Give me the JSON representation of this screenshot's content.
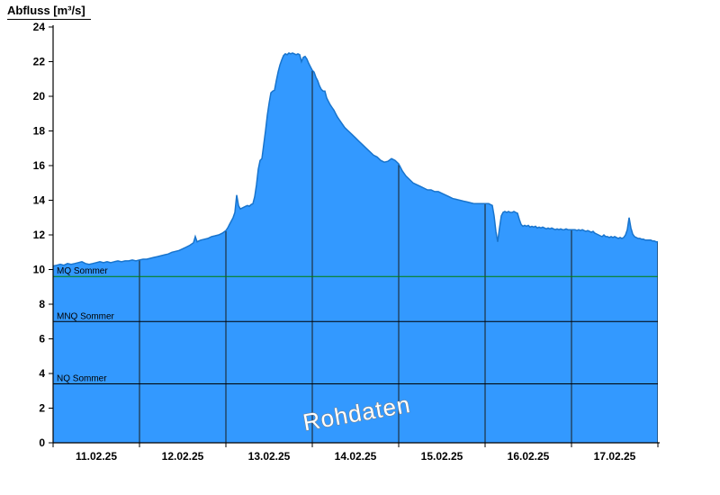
{
  "title": "Abfluss [m³/s]",
  "watermark": "Rohdaten",
  "chart_data": {
    "type": "area",
    "title": "Abfluss [m³/s]",
    "xlabel": "",
    "ylabel": "Abfluss [m³/s]",
    "x_unit": "hours since 11.02.25 00:00",
    "xlim": [
      0,
      168
    ],
    "ylim": [
      0,
      24
    ],
    "y_ticks": [
      0,
      2,
      4,
      6,
      8,
      10,
      12,
      14,
      16,
      18,
      20,
      22,
      24
    ],
    "x_tick_labels": [
      "11.02.25",
      "12.02.25",
      "13.02.25",
      "14.02.25",
      "15.02.25",
      "16.02.25",
      "17.02.25"
    ],
    "x_tick_positions_hours": [
      12,
      36,
      60,
      84,
      108,
      132,
      156
    ],
    "x_boundaries_hours": [
      0,
      24,
      48,
      72,
      96,
      120,
      144,
      168
    ],
    "grid": "vertical lines at day boundaries, clipped to filled area",
    "legend": "none",
    "colors": {
      "area_fill": "#3399FF",
      "area_stroke": "#1874CD",
      "grid_line": "#1a1a1a",
      "axis": "#000000",
      "watermark_fill": "#ffffff",
      "watermark_stroke": "#808080"
    },
    "reference_lines": [
      {
        "label": "MQ Sommer",
        "value": 9.6,
        "color": "#008000"
      },
      {
        "label": "MNQ Sommer",
        "value": 7.0,
        "color": "#000000"
      },
      {
        "label": "NQ Sommer",
        "value": 3.4,
        "color": "#000000"
      }
    ],
    "series": [
      {
        "name": "Abfluss Rohdaten",
        "points": [
          [
            0,
            10.2
          ],
          [
            1,
            10.25
          ],
          [
            2,
            10.3
          ],
          [
            3,
            10.25
          ],
          [
            4,
            10.35
          ],
          [
            5,
            10.3
          ],
          [
            6,
            10.35
          ],
          [
            7,
            10.4
          ],
          [
            8,
            10.45
          ],
          [
            9,
            10.35
          ],
          [
            10,
            10.3
          ],
          [
            11,
            10.35
          ],
          [
            12,
            10.4
          ],
          [
            13,
            10.45
          ],
          [
            14,
            10.4
          ],
          [
            15,
            10.45
          ],
          [
            16,
            10.4
          ],
          [
            17,
            10.45
          ],
          [
            18,
            10.5
          ],
          [
            19,
            10.45
          ],
          [
            20,
            10.5
          ],
          [
            21,
            10.5
          ],
          [
            22,
            10.55
          ],
          [
            23,
            10.5
          ],
          [
            24,
            10.55
          ],
          [
            25,
            10.6
          ],
          [
            26,
            10.6
          ],
          [
            27,
            10.65
          ],
          [
            28,
            10.7
          ],
          [
            29,
            10.75
          ],
          [
            30,
            10.8
          ],
          [
            31,
            10.85
          ],
          [
            32,
            10.9
          ],
          [
            33,
            11.0
          ],
          [
            34,
            11.05
          ],
          [
            35,
            11.1
          ],
          [
            36,
            11.2
          ],
          [
            37,
            11.3
          ],
          [
            38,
            11.4
          ],
          [
            39,
            11.55
          ],
          [
            39.5,
            11.9
          ],
          [
            40,
            11.6
          ],
          [
            40.5,
            11.65
          ],
          [
            41,
            11.7
          ],
          [
            42,
            11.75
          ],
          [
            43,
            11.8
          ],
          [
            44,
            11.9
          ],
          [
            45,
            11.95
          ],
          [
            46,
            12.0
          ],
          [
            47,
            12.1
          ],
          [
            48,
            12.25
          ],
          [
            48.5,
            12.4
          ],
          [
            49,
            12.6
          ],
          [
            49.5,
            12.8
          ],
          [
            50,
            13.0
          ],
          [
            50.5,
            13.3
          ],
          [
            51,
            14.3
          ],
          [
            51.5,
            13.7
          ],
          [
            52,
            13.5
          ],
          [
            52.5,
            13.55
          ],
          [
            53,
            13.6
          ],
          [
            53.5,
            13.65
          ],
          [
            54,
            13.7
          ],
          [
            54.5,
            13.65
          ],
          [
            55,
            13.75
          ],
          [
            55.5,
            13.8
          ],
          [
            56,
            14.2
          ],
          [
            56.5,
            14.9
          ],
          [
            57,
            15.8
          ],
          [
            57.5,
            16.3
          ],
          [
            58,
            16.4
          ],
          [
            58.5,
            17.2
          ],
          [
            59,
            18.0
          ],
          [
            59.5,
            18.9
          ],
          [
            60,
            19.6
          ],
          [
            60.5,
            20.2
          ],
          [
            61,
            20.3
          ],
          [
            61.5,
            20.35
          ],
          [
            62,
            20.9
          ],
          [
            62.5,
            21.4
          ],
          [
            63,
            21.8
          ],
          [
            63.5,
            22.1
          ],
          [
            64,
            22.35
          ],
          [
            64.5,
            22.45
          ],
          [
            65,
            22.4
          ],
          [
            65.5,
            22.5
          ],
          [
            66,
            22.45
          ],
          [
            66.5,
            22.5
          ],
          [
            67,
            22.45
          ],
          [
            67.5,
            22.4
          ],
          [
            68,
            22.45
          ],
          [
            68.5,
            22.4
          ],
          [
            69,
            22.0
          ],
          [
            69.5,
            22.25
          ],
          [
            70,
            22.3
          ],
          [
            70.5,
            22.15
          ],
          [
            71,
            21.9
          ],
          [
            71.5,
            21.7
          ],
          [
            72,
            21.5
          ],
          [
            72.5,
            21.4
          ],
          [
            73,
            21.1
          ],
          [
            73.5,
            20.9
          ],
          [
            74,
            20.6
          ],
          [
            74.5,
            20.4
          ],
          [
            75,
            20.3
          ],
          [
            75.5,
            20.3
          ],
          [
            76,
            19.9
          ],
          [
            76.5,
            19.7
          ],
          [
            77,
            19.5
          ],
          [
            77.5,
            19.35
          ],
          [
            78,
            19.2
          ],
          [
            78.5,
            19.0
          ],
          [
            79,
            18.8
          ],
          [
            79.5,
            18.65
          ],
          [
            80,
            18.5
          ],
          [
            80.5,
            18.35
          ],
          [
            81,
            18.2
          ],
          [
            82,
            18.0
          ],
          [
            83,
            17.8
          ],
          [
            84,
            17.6
          ],
          [
            85,
            17.4
          ],
          [
            86,
            17.2
          ],
          [
            87,
            17.0
          ],
          [
            88,
            16.8
          ],
          [
            89,
            16.6
          ],
          [
            90,
            16.5
          ],
          [
            91,
            16.3
          ],
          [
            92,
            16.2
          ],
          [
            93,
            16.25
          ],
          [
            94,
            16.4
          ],
          [
            95,
            16.3
          ],
          [
            96,
            16.1
          ],
          [
            97,
            15.7
          ],
          [
            98,
            15.4
          ],
          [
            99,
            15.2
          ],
          [
            100,
            15.0
          ],
          [
            101,
            14.9
          ],
          [
            102,
            14.8
          ],
          [
            103,
            14.7
          ],
          [
            104,
            14.6
          ],
          [
            105,
            14.6
          ],
          [
            106,
            14.5
          ],
          [
            107,
            14.5
          ],
          [
            108,
            14.4
          ],
          [
            109,
            14.3
          ],
          [
            110,
            14.2
          ],
          [
            111,
            14.1
          ],
          [
            112,
            14.05
          ],
          [
            113,
            14.0
          ],
          [
            114,
            13.95
          ],
          [
            115,
            13.9
          ],
          [
            116,
            13.85
          ],
          [
            117,
            13.8
          ],
          [
            118,
            13.8
          ],
          [
            119,
            13.8
          ],
          [
            120,
            13.8
          ],
          [
            121,
            13.8
          ],
          [
            121.5,
            13.75
          ],
          [
            122,
            13.7
          ],
          [
            122.5,
            13.1
          ],
          [
            123,
            12.2
          ],
          [
            123.5,
            11.6
          ],
          [
            124,
            12.4
          ],
          [
            124.5,
            13.1
          ],
          [
            125,
            13.3
          ],
          [
            125.5,
            13.35
          ],
          [
            126,
            13.3
          ],
          [
            126.5,
            13.35
          ],
          [
            127,
            13.3
          ],
          [
            127.5,
            13.3
          ],
          [
            128,
            13.35
          ],
          [
            128.5,
            13.3
          ],
          [
            129,
            13.25
          ],
          [
            129.5,
            12.9
          ],
          [
            130,
            12.6
          ],
          [
            130.5,
            12.5
          ],
          [
            131,
            12.55
          ],
          [
            131.5,
            12.5
          ],
          [
            132,
            12.55
          ],
          [
            132.5,
            12.45
          ],
          [
            133,
            12.5
          ],
          [
            133.5,
            12.45
          ],
          [
            134,
            12.5
          ],
          [
            134.5,
            12.4
          ],
          [
            135,
            12.45
          ],
          [
            135.5,
            12.4
          ],
          [
            136,
            12.45
          ],
          [
            136.5,
            12.4
          ],
          [
            137,
            12.35
          ],
          [
            137.5,
            12.4
          ],
          [
            138,
            12.35
          ],
          [
            138.5,
            12.4
          ],
          [
            139,
            12.35
          ],
          [
            139.5,
            12.3
          ],
          [
            140,
            12.35
          ],
          [
            140.5,
            12.3
          ],
          [
            141,
            12.35
          ],
          [
            141.5,
            12.3
          ],
          [
            142,
            12.3
          ],
          [
            142.5,
            12.35
          ],
          [
            143,
            12.3
          ],
          [
            144,
            12.3
          ],
          [
            145,
            12.3
          ],
          [
            145.5,
            12.25
          ],
          [
            146,
            12.3
          ],
          [
            146.5,
            12.25
          ],
          [
            147,
            12.3
          ],
          [
            147.5,
            12.25
          ],
          [
            148,
            12.2
          ],
          [
            148.5,
            12.25
          ],
          [
            149,
            12.2
          ],
          [
            149.5,
            12.15
          ],
          [
            150,
            12.2
          ],
          [
            150.5,
            12.1
          ],
          [
            151,
            12.05
          ],
          [
            151.5,
            12.0
          ],
          [
            152,
            11.95
          ],
          [
            152.5,
            11.9
          ],
          [
            153,
            12.0
          ],
          [
            153.5,
            11.9
          ],
          [
            154,
            11.9
          ],
          [
            154.5,
            11.85
          ],
          [
            155,
            11.9
          ],
          [
            155.5,
            11.85
          ],
          [
            156,
            11.9
          ],
          [
            156.5,
            11.85
          ],
          [
            157,
            11.8
          ],
          [
            157.5,
            11.85
          ],
          [
            158,
            11.8
          ],
          [
            158.5,
            11.85
          ],
          [
            159,
            12.0
          ],
          [
            159.5,
            12.3
          ],
          [
            160,
            13.0
          ],
          [
            160.5,
            12.4
          ],
          [
            161,
            12.05
          ],
          [
            161.5,
            11.9
          ],
          [
            162,
            11.85
          ],
          [
            162.5,
            11.8
          ],
          [
            163,
            11.8
          ],
          [
            163.5,
            11.75
          ],
          [
            164,
            11.75
          ],
          [
            164.5,
            11.7
          ],
          [
            165,
            11.7
          ],
          [
            165.5,
            11.7
          ],
          [
            166,
            11.7
          ],
          [
            166.5,
            11.65
          ],
          [
            167,
            11.65
          ],
          [
            167.5,
            11.6
          ],
          [
            168,
            11.6
          ]
        ]
      }
    ]
  }
}
